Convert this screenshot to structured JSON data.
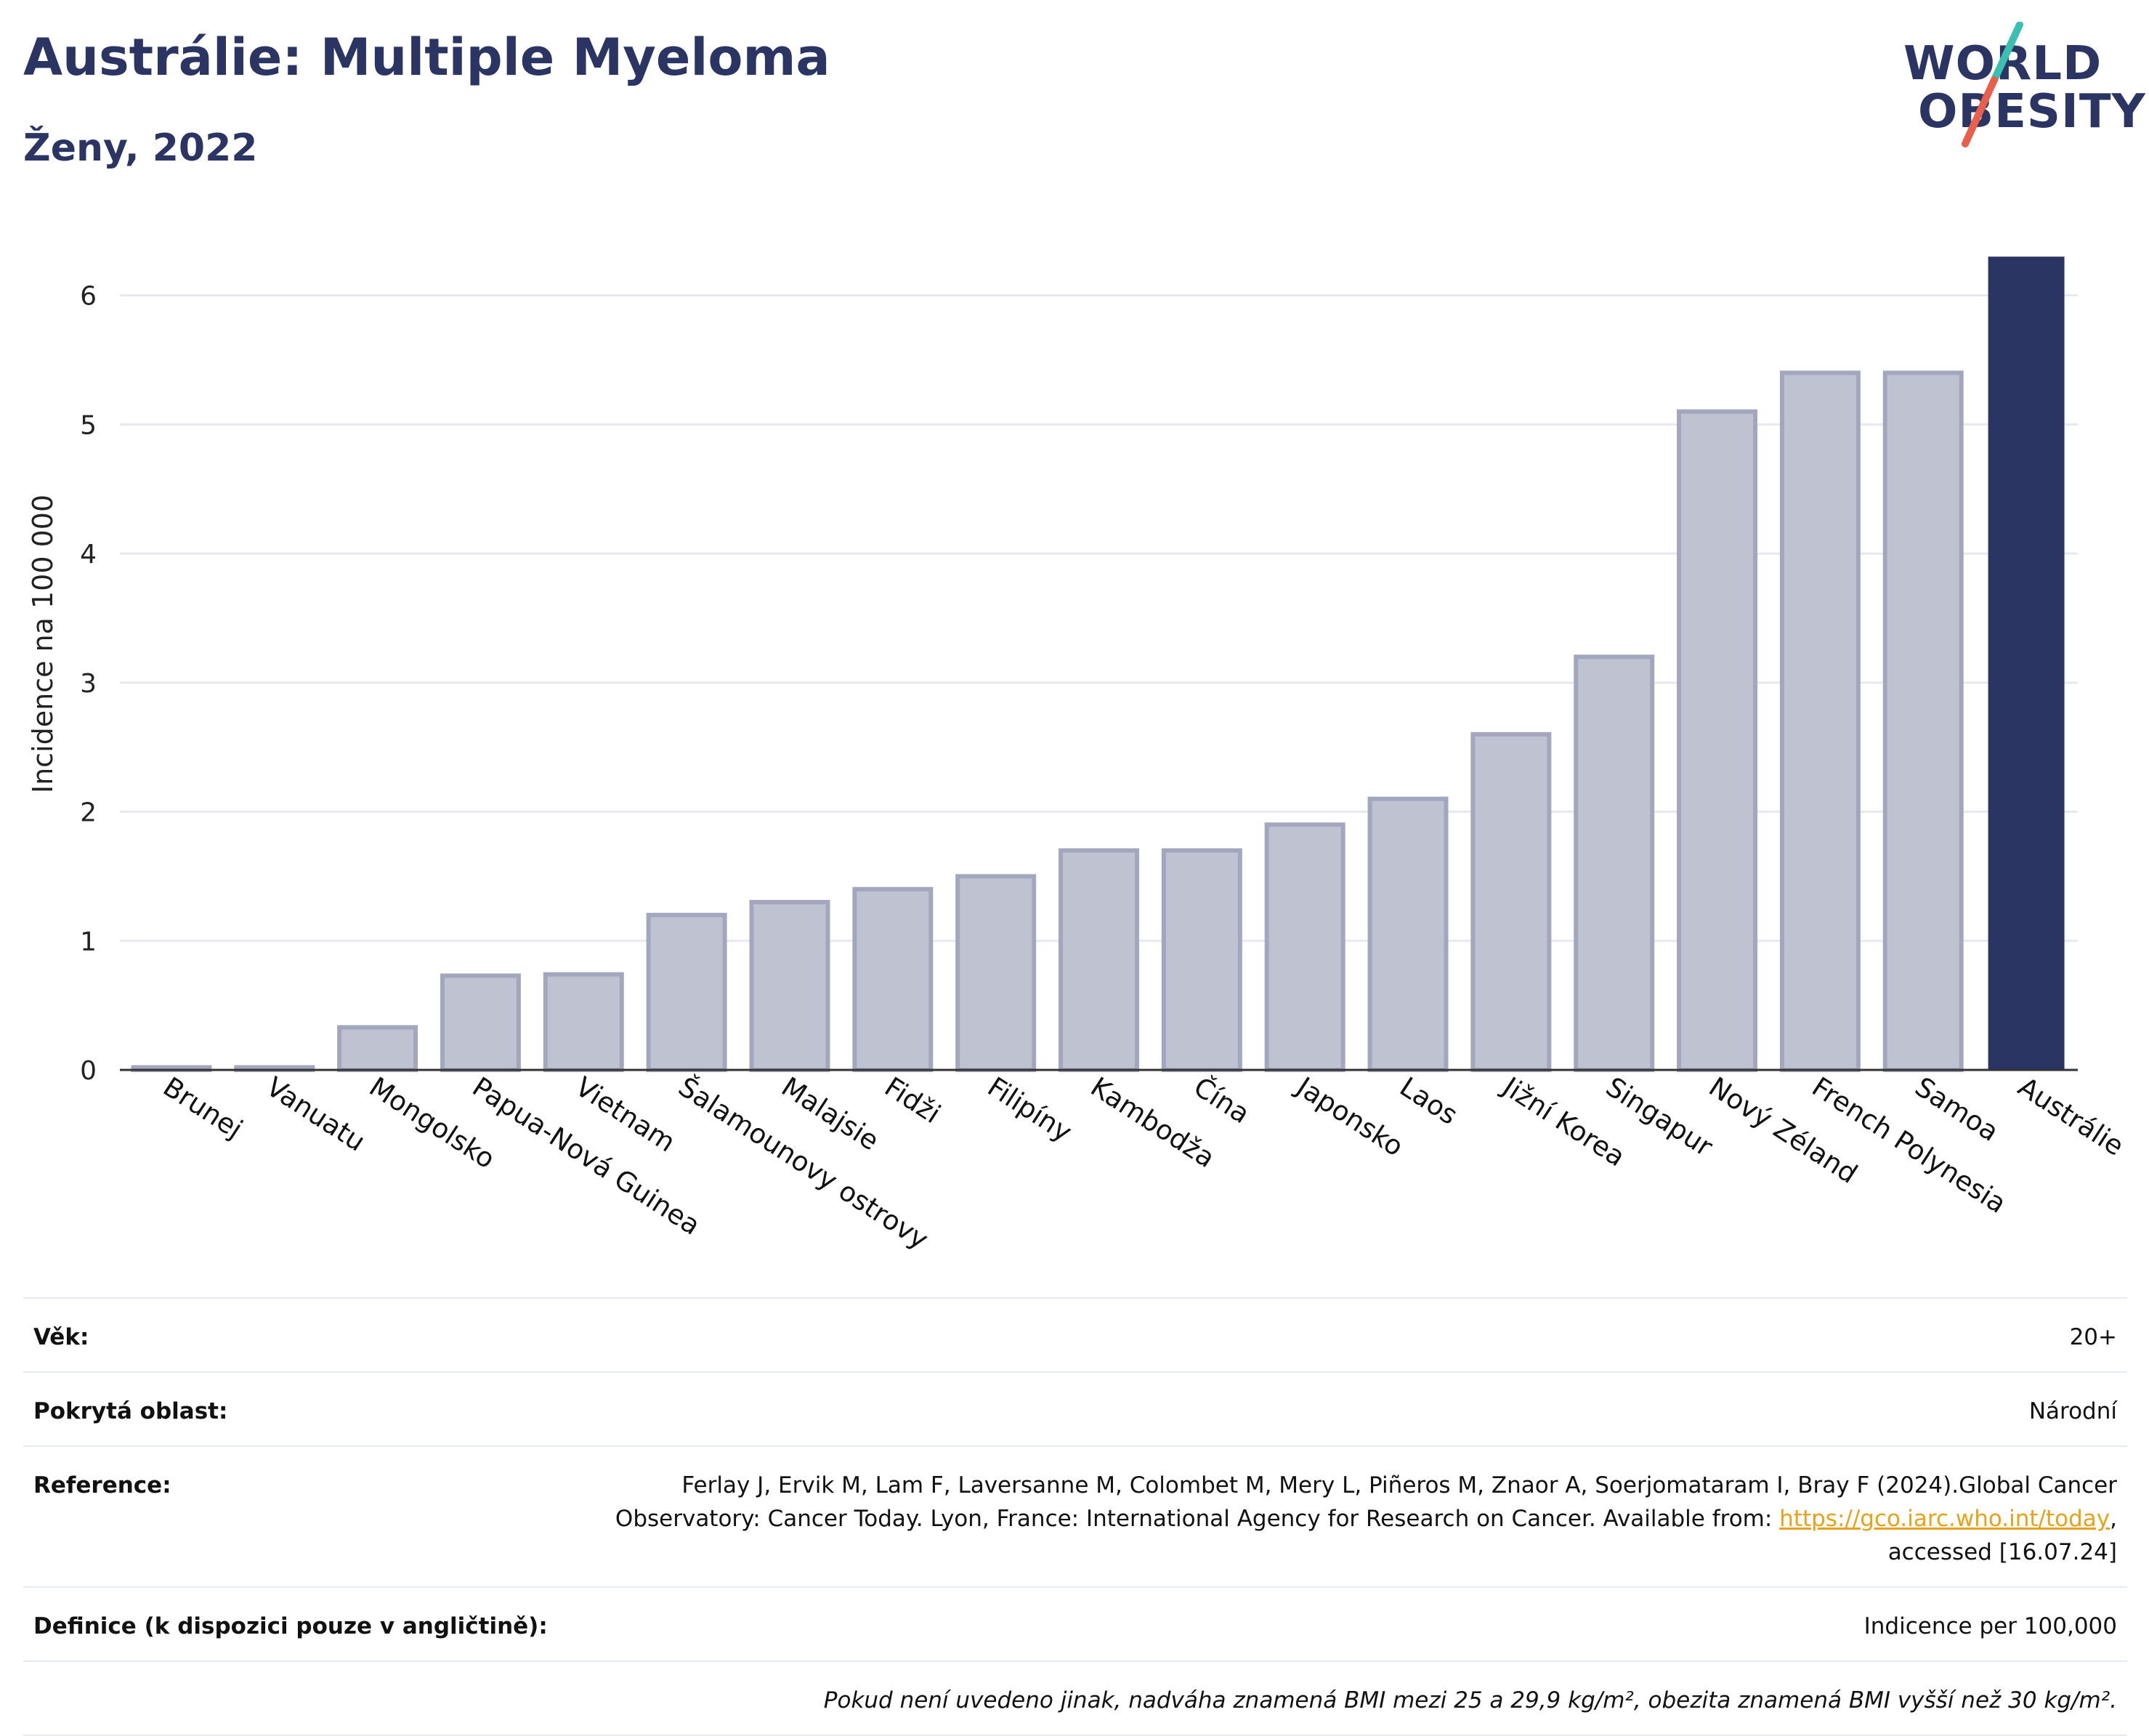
{
  "header": {
    "title": "Austrálie: Multiple Myeloma",
    "subtitle": "Ženy, 2022"
  },
  "logo": {
    "line1": "WORLD",
    "line2": "OBESITY",
    "colors": {
      "text": "#2a3563",
      "slash_top": "#3bbfb3",
      "slash_bottom": "#e8604c"
    }
  },
  "colors": {
    "highlight_bar": "#2a3563",
    "other_bar_fill": "#bfc3d1",
    "other_bar_stroke": "#a2a7bd",
    "grid": "#e8e9f0",
    "link": "#e8a21a"
  },
  "chart_data": {
    "type": "bar",
    "title": "",
    "xlabel": "",
    "ylabel": "Incidence na 100 000",
    "ylim": [
      0,
      6.6
    ],
    "yticks": [
      0,
      1,
      2,
      3,
      4,
      5,
      6
    ],
    "grid": true,
    "highlight": "Austrálie",
    "categories": [
      "Brunej",
      "Vanuatu",
      "Mongolsko",
      "Papua-Nová Guinea",
      "Vietnam",
      "Šalamounovy ostrovy",
      "Malajsie",
      "Fidži",
      "Filipíny",
      "Kambodža",
      "Čína",
      "Japonsko",
      "Laos",
      "Jižní Korea",
      "Singapur",
      "Nový Zéland",
      "French Polynesia",
      "Samoa",
      "Austrálie"
    ],
    "values": [
      0.02,
      0.02,
      0.33,
      0.73,
      0.74,
      1.2,
      1.3,
      1.4,
      1.5,
      1.7,
      1.7,
      1.9,
      2.1,
      2.6,
      3.2,
      5.1,
      5.4,
      5.4,
      6.3
    ]
  },
  "info": {
    "rows": [
      {
        "label": "Věk:",
        "value": "20+"
      },
      {
        "label": "Pokrytá oblast:",
        "value": "Národní"
      },
      {
        "label": "Reference:",
        "value_before": "Ferlay J, Ervik M, Lam F, Laversanne M, Colombet M, Mery L, Piñeros M, Znaor A, Soerjomataram I, Bray F (2024).Global Cancer Observatory: Cancer Today. Lyon, France: International Agency for Research on Cancer. Available from: ",
        "link": "https://gco.iarc.who.int/today",
        "value_after": ", accessed [16.07.24]"
      },
      {
        "label": "Definice (k dispozici pouze v angličtině):",
        "value": "Indicence per 100,000"
      }
    ],
    "note": "Pokud není uvedeno jinak, nadváha znamená BMI mezi 25 a 29,9 kg/m², obezita znamená BMI vyšší než 30 kg/m²."
  }
}
